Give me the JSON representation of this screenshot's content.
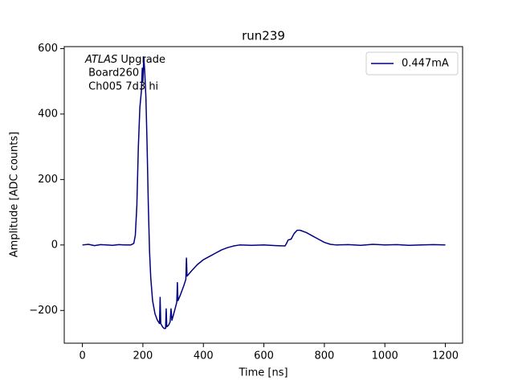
{
  "chart_data": {
    "type": "line",
    "title": "run239",
    "xlabel": "Time [ns]",
    "ylabel": "Amplitude [ADC counts]",
    "annotation": {
      "experiment": "ATLAS",
      "text": "Upgrade",
      "lines": [
        " Board260",
        " Ch005 7d3 hi"
      ]
    },
    "x": [
      0,
      20,
      40,
      60,
      80,
      100,
      120,
      140,
      160,
      170,
      175,
      180,
      185,
      190,
      195,
      198,
      200,
      203,
      206,
      210,
      214,
      218,
      222,
      226,
      232,
      240,
      248,
      255,
      257,
      259,
      265,
      270,
      275,
      277,
      279,
      285,
      290,
      293,
      296,
      305,
      312,
      314,
      316,
      325,
      335,
      342,
      344,
      346,
      360,
      380,
      400,
      420,
      440,
      460,
      480,
      500,
      520,
      560,
      600,
      640,
      670,
      675,
      680,
      690,
      700,
      710,
      720,
      740,
      760,
      780,
      800,
      820,
      840,
      880,
      920,
      960,
      1000,
      1040,
      1080,
      1120,
      1160,
      1200
    ],
    "series": [
      {
        "name": "0.447mA",
        "color": "#000080",
        "values": [
          0,
          2,
          -2,
          1,
          0,
          -1,
          1,
          0,
          0,
          5,
          30,
          120,
          300,
          420,
          470,
          540,
          500,
          575,
          530,
          450,
          300,
          120,
          -20,
          -100,
          -170,
          -210,
          -230,
          -240,
          -160,
          -240,
          -250,
          -255,
          -255,
          -195,
          -250,
          -245,
          -235,
          -195,
          -230,
          -200,
          -175,
          -115,
          -170,
          -150,
          -125,
          -105,
          -40,
          -95,
          -80,
          -60,
          -45,
          -35,
          -25,
          -15,
          -8,
          -3,
          0,
          -1,
          0,
          -2,
          -3,
          5,
          15,
          18,
          35,
          45,
          45,
          38,
          28,
          18,
          8,
          2,
          0,
          1,
          -1,
          2,
          0,
          1,
          -1,
          0,
          1,
          0
        ]
      }
    ],
    "xlim": [
      -60,
      1257
    ],
    "ylim": [
      -300,
      606
    ],
    "xticks": [
      0,
      200,
      400,
      600,
      800,
      1000,
      1200
    ],
    "yticks": [
      {
        "value": -200,
        "label": "−200"
      },
      0,
      200,
      400,
      600
    ],
    "legend": "upper right",
    "grid": false
  }
}
